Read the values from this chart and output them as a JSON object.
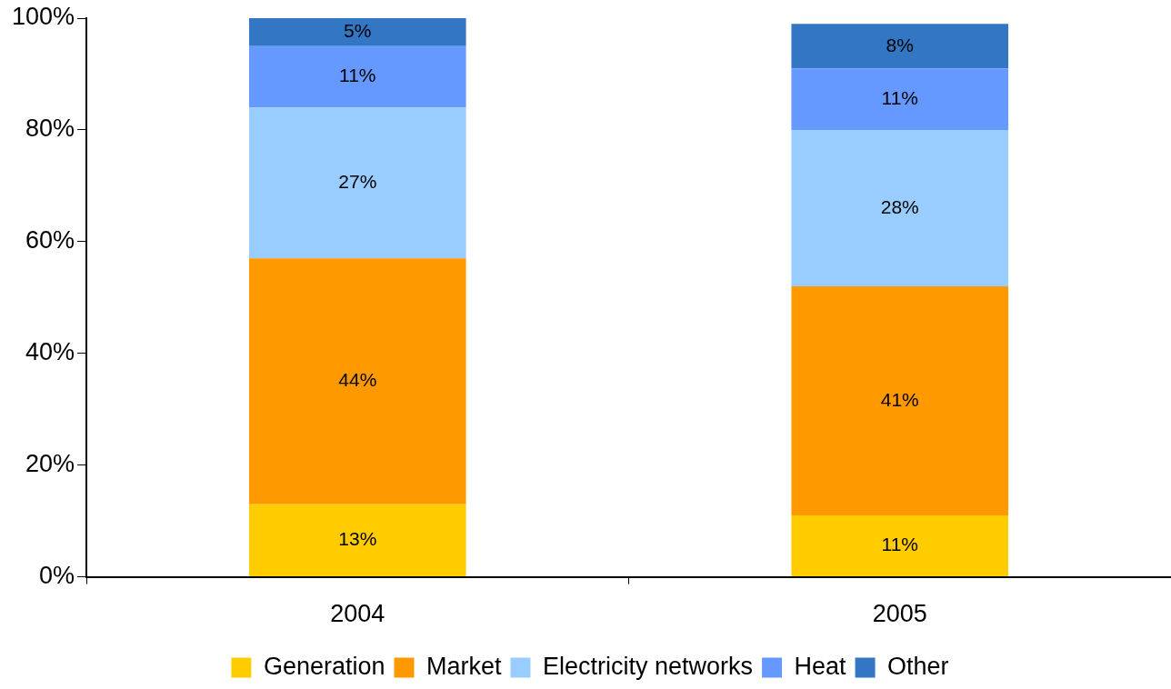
{
  "chart_data": {
    "type": "bar",
    "stacked": true,
    "categories": [
      "2004",
      "2005"
    ],
    "series": [
      {
        "name": "Generation",
        "color": "#ffcc00",
        "values": [
          13,
          11
        ],
        "value_labels": [
          "13%",
          "11%"
        ]
      },
      {
        "name": "Market",
        "color": "#ff9900",
        "values": [
          44,
          41
        ],
        "value_labels": [
          "44%",
          "41%"
        ]
      },
      {
        "name": "Electricity networks",
        "color": "#99ccff",
        "values": [
          27,
          28
        ],
        "value_labels": [
          "27%",
          "28%"
        ]
      },
      {
        "name": "Heat",
        "color": "#6699ff",
        "values": [
          11,
          11
        ],
        "value_labels": [
          "11%",
          "11%"
        ]
      },
      {
        "name": "Other",
        "color": "#3377c4",
        "values": [
          5,
          8
        ],
        "value_labels": [
          "5%",
          "8%"
        ]
      }
    ],
    "ylim": [
      0,
      100
    ],
    "yticks": [
      {
        "value": 0,
        "label": "0%"
      },
      {
        "value": 20,
        "label": "20%"
      },
      {
        "value": 40,
        "label": "40%"
      },
      {
        "value": 60,
        "label": "60%"
      },
      {
        "value": 80,
        "label": "80%"
      },
      {
        "value": 100,
        "label": "100%"
      }
    ],
    "grid": false,
    "legend": "bottom"
  }
}
